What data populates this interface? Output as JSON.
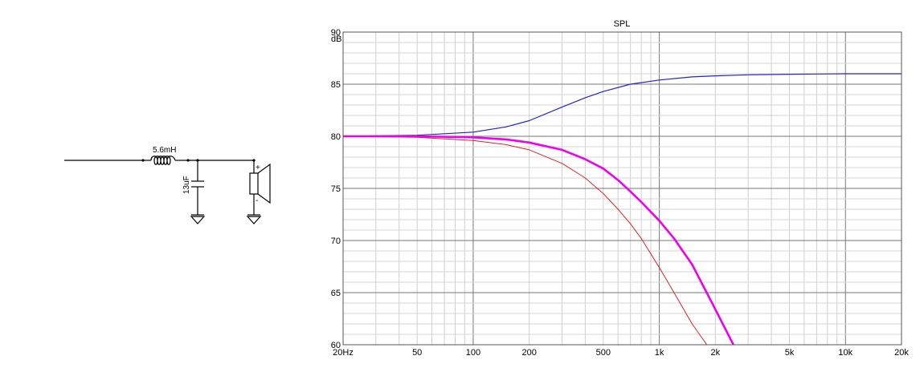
{
  "schematic": {
    "inductor_label": "5.6mH",
    "capacitor_label": "13uF",
    "speaker_plus": "+",
    "speaker_minus": "-"
  },
  "chart_data": {
    "type": "line",
    "title": "SPL",
    "xscale": "log",
    "xlim": [
      20,
      20000
    ],
    "ylim": [
      60,
      90
    ],
    "y_unit": "dB",
    "x_tick_values": [
      20,
      50,
      100,
      200,
      500,
      1000,
      2000,
      5000,
      10000,
      20000
    ],
    "x_tick_labels": [
      "20Hz",
      "50",
      "100",
      "200",
      "500",
      "1k",
      "2k",
      "5k",
      "10k",
      "20k"
    ],
    "y_tick_values": [
      60,
      65,
      70,
      75,
      80,
      85,
      90
    ],
    "y_tick_labels": [
      "60",
      "65",
      "70",
      "75",
      "80",
      "85",
      "90"
    ],
    "grid": true,
    "series": [
      {
        "color": "#2222cc",
        "stroke_width": 1.2,
        "x": [
          20,
          50,
          100,
          150,
          200,
          300,
          400,
          500,
          700,
          1000,
          1500,
          2000,
          3000,
          5000,
          10000,
          20000
        ],
        "y": [
          80.0,
          80.1,
          80.4,
          80.9,
          81.5,
          82.8,
          83.7,
          84.3,
          85.0,
          85.4,
          85.7,
          85.8,
          85.9,
          85.95,
          86.0,
          86.0
        ]
      },
      {
        "color": "#dd2222",
        "stroke_width": 1.0,
        "x": [
          20,
          50,
          100,
          150,
          200,
          300,
          400,
          500,
          600,
          700,
          800,
          1000,
          1200,
          1500,
          1800
        ],
        "y": [
          80.0,
          79.9,
          79.6,
          79.2,
          78.7,
          77.4,
          76.0,
          74.5,
          73.0,
          71.6,
          70.2,
          67.4,
          65.0,
          62.0,
          59.5
        ]
      },
      {
        "color": "#ee00ee",
        "stroke_width": 2.6,
        "x": [
          20,
          50,
          100,
          150,
          200,
          300,
          400,
          500,
          600,
          700,
          800,
          1000,
          1200,
          1500,
          2000,
          2500
        ],
        "y": [
          80.0,
          80.0,
          79.9,
          79.7,
          79.4,
          78.7,
          77.8,
          76.9,
          75.8,
          74.7,
          73.7,
          71.9,
          70.2,
          67.7,
          63.4,
          59.5
        ]
      }
    ]
  }
}
